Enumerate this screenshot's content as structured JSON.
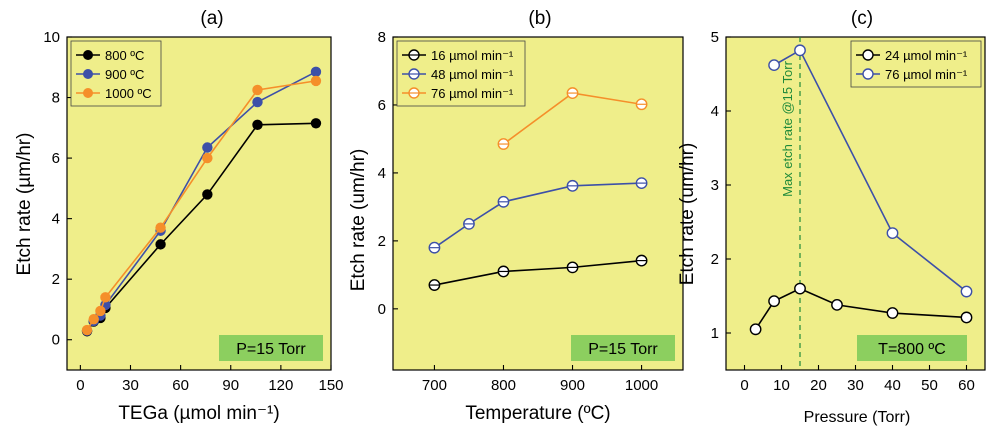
{
  "chart_data": [
    {
      "type": "line",
      "panel_label": "(a)",
      "xlabel": "TEGa (µmol min⁻¹)",
      "ylabel": "Etch rate (µm/hr)",
      "xlim": [
        -8,
        150
      ],
      "ylim": [
        -1,
        10
      ],
      "xticks": [
        0,
        30,
        60,
        90,
        120,
        150
      ],
      "yticks": [
        0,
        2,
        4,
        6,
        8,
        10
      ],
      "annotation": "P=15 Torr",
      "legend": {
        "position": "top-left",
        "filled_markers": true
      },
      "series": [
        {
          "name": "800 ºC",
          "color": "#000000",
          "x": [
            4,
            8,
            12,
            15,
            48,
            76,
            106,
            141
          ],
          "y": [
            0.28,
            0.6,
            0.72,
            1.05,
            3.15,
            4.8,
            7.1,
            7.15
          ]
        },
        {
          "name": "900 ºC",
          "color": "#3d50a8",
          "x": [
            4,
            8,
            12,
            15,
            48,
            76,
            106,
            141
          ],
          "y": [
            0.3,
            0.62,
            0.8,
            1.15,
            3.6,
            6.35,
            7.85,
            8.85
          ]
        },
        {
          "name": "1000 ºC",
          "color": "#f58f2a",
          "x": [
            4,
            8,
            12,
            15,
            48,
            76,
            106,
            141
          ],
          "y": [
            0.32,
            0.68,
            0.95,
            1.4,
            3.7,
            6.0,
            8.25,
            8.55
          ]
        }
      ]
    },
    {
      "type": "line",
      "panel_label": "(b)",
      "xlabel": "Temperature (ºC)",
      "ylabel": "Etch rate (um/hr)",
      "xlim": [
        640,
        1060
      ],
      "ylim": [
        -1.8,
        8
      ],
      "xticks": [
        700,
        800,
        900,
        1000
      ],
      "yticks": [
        0,
        2,
        4,
        6,
        8
      ],
      "annotation": "P=15 Torr",
      "legend": {
        "position": "top-left",
        "filled_markers": false
      },
      "series": [
        {
          "name": "16 µmol min⁻¹",
          "color": "#000000",
          "x": [
            700,
            800,
            900,
            1000
          ],
          "y": [
            0.7,
            1.1,
            1.22,
            1.42
          ]
        },
        {
          "name": "48 µmol min⁻¹",
          "color": "#3d50a8",
          "x": [
            700,
            750,
            800,
            900,
            1000
          ],
          "y": [
            1.8,
            2.5,
            3.15,
            3.62,
            3.7
          ]
        },
        {
          "name": "76 µmol min⁻¹",
          "color": "#f58f2a",
          "x": [
            800,
            900,
            1000
          ],
          "y": [
            4.85,
            6.35,
            6.02
          ]
        }
      ]
    },
    {
      "type": "line",
      "panel_label": "(c)",
      "xlabel": "Pressure (Torr)",
      "ylabel": "Etch rate (um/hr)",
      "xlim": [
        -5,
        65
      ],
      "ylim": [
        0.5,
        5
      ],
      "xticks": [
        0,
        10,
        20,
        30,
        40,
        50,
        60
      ],
      "yticks": [
        1,
        2,
        3,
        4,
        5
      ],
      "annotation": "T=800 ºC",
      "vline": {
        "x": 15,
        "label": "Max etch rate @15 Torr",
        "color": "#1f8a3a"
      },
      "legend": {
        "position": "top-right",
        "filled_markers": false
      },
      "series": [
        {
          "name": "24 µmol min⁻¹",
          "color": "#000000",
          "x": [
            3,
            8,
            15,
            25,
            40,
            60
          ],
          "y": [
            1.05,
            1.43,
            1.6,
            1.38,
            1.27,
            1.21
          ]
        },
        {
          "name": "76 µmol min⁻¹",
          "color": "#3d50a8",
          "x": [
            8,
            15,
            40,
            60
          ],
          "y": [
            4.62,
            4.82,
            2.35,
            1.56
          ]
        }
      ]
    }
  ]
}
